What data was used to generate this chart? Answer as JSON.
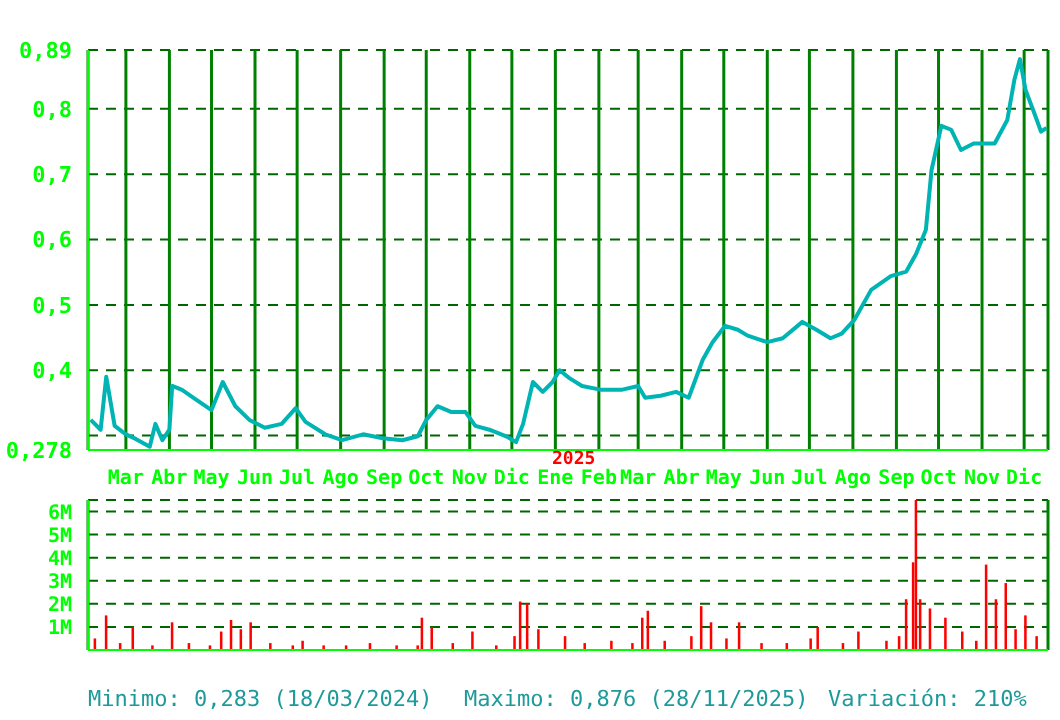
{
  "chart_data": [
    {
      "type": "line",
      "x": [
        "2024-02-05",
        "2024-02-12",
        "2024-02-16",
        "2024-02-22",
        "2024-03-01",
        "2024-03-08",
        "2024-03-18",
        "2024-03-22",
        "2024-03-27",
        "2024-04-01",
        "2024-04-03",
        "2024-04-10",
        "2024-04-20",
        "2024-05-01",
        "2024-05-09",
        "2024-05-18",
        "2024-05-28",
        "2024-06-08",
        "2024-06-20",
        "2024-06-30",
        "2024-07-07",
        "2024-07-21",
        "2024-08-02",
        "2024-08-17",
        "2024-08-31",
        "2024-09-14",
        "2024-09-25",
        "2024-10-01",
        "2024-10-09",
        "2024-10-19",
        "2024-10-29",
        "2024-11-05",
        "2024-11-15",
        "2024-11-27",
        "2024-12-04",
        "2024-12-09",
        "2024-12-16",
        "2024-12-23",
        "2024-12-30",
        "2025-01-04",
        "2025-01-11",
        "2025-01-20",
        "2025-02-03",
        "2025-02-17",
        "2025-03-01",
        "2025-03-06",
        "2025-03-17",
        "2025-03-28",
        "2025-04-06",
        "2025-04-16",
        "2025-04-23",
        "2025-05-02",
        "2025-05-11",
        "2025-05-18",
        "2025-06-01",
        "2025-06-12",
        "2025-06-26",
        "2025-07-06",
        "2025-07-16",
        "2025-07-24",
        "2025-08-02",
        "2025-08-14",
        "2025-08-28",
        "2025-09-08",
        "2025-09-15",
        "2025-09-22",
        "2025-09-26",
        "2025-10-03",
        "2025-10-10",
        "2025-10-17",
        "2025-10-26",
        "2025-11-01",
        "2025-11-10",
        "2025-11-19",
        "2025-11-24",
        "2025-11-28",
        "2025-12-02",
        "2025-12-09",
        "2025-12-13",
        "2025-12-17"
      ],
      "values": [
        0.324,
        0.309,
        0.39,
        0.315,
        0.302,
        0.295,
        0.283,
        0.318,
        0.293,
        0.309,
        0.376,
        0.37,
        0.355,
        0.339,
        0.382,
        0.345,
        0.324,
        0.312,
        0.318,
        0.342,
        0.321,
        0.302,
        0.293,
        0.302,
        0.296,
        0.293,
        0.299,
        0.324,
        0.345,
        0.336,
        0.336,
        0.315,
        0.309,
        0.299,
        0.29,
        0.318,
        0.382,
        0.367,
        0.382,
        0.4,
        0.388,
        0.376,
        0.37,
        0.37,
        0.376,
        0.358,
        0.361,
        0.367,
        0.358,
        0.416,
        0.443,
        0.468,
        0.462,
        0.453,
        0.443,
        0.449,
        0.474,
        0.462,
        0.449,
        0.456,
        0.477,
        0.523,
        0.544,
        0.551,
        0.578,
        0.615,
        0.706,
        0.774,
        0.768,
        0.737,
        0.747,
        0.747,
        0.747,
        0.783,
        0.844,
        0.876,
        0.829,
        0.789,
        0.765,
        0.771
      ],
      "color": "#00b4b4",
      "xlim": [
        "2024-02-03",
        "2025-12-18"
      ],
      "xticks": [
        {
          "value": "2024-03-01",
          "label": "Mar"
        },
        {
          "value": "2024-04-01",
          "label": "Abr"
        },
        {
          "value": "2024-05-01",
          "label": "May"
        },
        {
          "value": "2024-06-01",
          "label": "Jun"
        },
        {
          "value": "2024-07-01",
          "label": "Jul"
        },
        {
          "value": "2024-08-01",
          "label": "Ago"
        },
        {
          "value": "2024-09-01",
          "label": "Sep"
        },
        {
          "value": "2024-10-01",
          "label": "Oct"
        },
        {
          "value": "2024-11-01",
          "label": "Nov"
        },
        {
          "value": "2024-12-01",
          "label": "Dic"
        },
        {
          "value": "2025-01-01",
          "label": "Ene"
        },
        {
          "value": "2025-02-01",
          "label": "Feb"
        },
        {
          "value": "2025-03-01",
          "label": "Mar"
        },
        {
          "value": "2025-04-01",
          "label": "Abr"
        },
        {
          "value": "2025-05-01",
          "label": "May"
        },
        {
          "value": "2025-06-01",
          "label": "Jun"
        },
        {
          "value": "2025-07-01",
          "label": "Jul"
        },
        {
          "value": "2025-08-01",
          "label": "Ago"
        },
        {
          "value": "2025-09-01",
          "label": "Sep"
        },
        {
          "value": "2025-10-01",
          "label": "Oct"
        },
        {
          "value": "2025-11-01",
          "label": "Nov"
        },
        {
          "value": "2025-12-01",
          "label": "Dic"
        }
      ],
      "ylim": [
        0.278,
        0.89
      ],
      "yticks": [
        {
          "value": 0.278,
          "label": "0,278"
        },
        {
          "value": 0.3,
          "label": null
        },
        {
          "value": 0.4,
          "label": "0,4"
        },
        {
          "value": 0.5,
          "label": "0,5"
        },
        {
          "value": 0.6,
          "label": "0,6"
        },
        {
          "value": 0.7,
          "label": "0,7"
        },
        {
          "value": 0.8,
          "label": "0,8"
        },
        {
          "value": 0.89,
          "label": "0,89"
        }
      ],
      "grid": true,
      "annotations": [
        "2025"
      ]
    },
    {
      "type": "bar",
      "x": [
        "2024-02-08",
        "2024-02-16",
        "2024-02-26",
        "2024-03-06",
        "2024-03-20",
        "2024-04-03",
        "2024-04-15",
        "2024-04-30",
        "2024-05-08",
        "2024-05-15",
        "2024-05-22",
        "2024-05-29",
        "2024-06-12",
        "2024-06-28",
        "2024-07-05",
        "2024-07-20",
        "2024-08-05",
        "2024-08-22",
        "2024-09-10",
        "2024-09-25",
        "2024-09-28",
        "2024-10-05",
        "2024-10-20",
        "2024-11-03",
        "2024-11-20",
        "2024-12-03",
        "2024-12-07",
        "2024-12-12",
        "2024-12-20",
        "2025-01-08",
        "2025-01-22",
        "2025-02-10",
        "2025-02-25",
        "2025-03-04",
        "2025-03-08",
        "2025-03-20",
        "2025-04-08",
        "2025-04-15",
        "2025-04-22",
        "2025-05-03",
        "2025-05-12",
        "2025-05-28",
        "2025-06-15",
        "2025-07-02",
        "2025-07-07",
        "2025-07-25",
        "2025-08-05",
        "2025-08-25",
        "2025-09-03",
        "2025-09-08",
        "2025-09-13",
        "2025-09-15",
        "2025-09-18",
        "2025-09-25",
        "2025-10-06",
        "2025-10-18",
        "2025-10-28",
        "2025-11-04",
        "2025-11-11",
        "2025-11-18",
        "2025-11-25",
        "2025-12-02",
        "2025-12-10"
      ],
      "values": [
        0.5,
        1.5,
        0.3,
        1.0,
        0.2,
        1.2,
        0.3,
        0.2,
        0.8,
        1.3,
        0.9,
        1.2,
        0.3,
        0.2,
        0.4,
        0.2,
        0.2,
        0.3,
        0.2,
        0.2,
        1.4,
        1.0,
        0.3,
        0.8,
        0.2,
        0.6,
        2.1,
        2.0,
        0.9,
        0.6,
        0.3,
        0.4,
        0.3,
        1.4,
        1.7,
        0.4,
        0.6,
        1.9,
        1.2,
        0.5,
        1.2,
        0.3,
        0.3,
        0.5,
        1.0,
        0.3,
        0.8,
        0.4,
        0.6,
        2.2,
        3.8,
        6.5,
        2.2,
        1.8,
        1.4,
        0.8,
        0.4,
        3.7,
        2.2,
        2.9,
        0.9,
        1.5,
        0.6
      ],
      "color": "#ff0000",
      "xlim": [
        "2024-02-03",
        "2025-12-18"
      ],
      "xticks": [
        "2024-03-01",
        "2024-04-01",
        "2024-05-01",
        "2024-06-01",
        "2024-07-01",
        "2024-08-01",
        "2024-09-01",
        "2024-10-01",
        "2024-11-01",
        "2024-12-01",
        "2025-01-01",
        "2025-02-01",
        "2025-03-01",
        "2025-04-01",
        "2025-05-01",
        "2025-06-01",
        "2025-07-01",
        "2025-08-01",
        "2025-09-01",
        "2025-10-01",
        "2025-11-01",
        "2025-12-01"
      ],
      "ylim": [
        0,
        6.5
      ],
      "yticks": [
        {
          "value": 1,
          "label": "1M"
        },
        {
          "value": 2,
          "label": "2M"
        },
        {
          "value": 3,
          "label": "3M"
        },
        {
          "value": 4,
          "label": "4M"
        },
        {
          "value": 5,
          "label": "5M"
        },
        {
          "value": 6,
          "label": "6M"
        }
      ],
      "grid": true,
      "tick_labels": "y",
      "annotations": [
        "Minimo: 0,283 (18/03/2024)",
        "Maximo: 0,876 (28/11/2025)",
        "Variación: 210%"
      ]
    }
  ]
}
